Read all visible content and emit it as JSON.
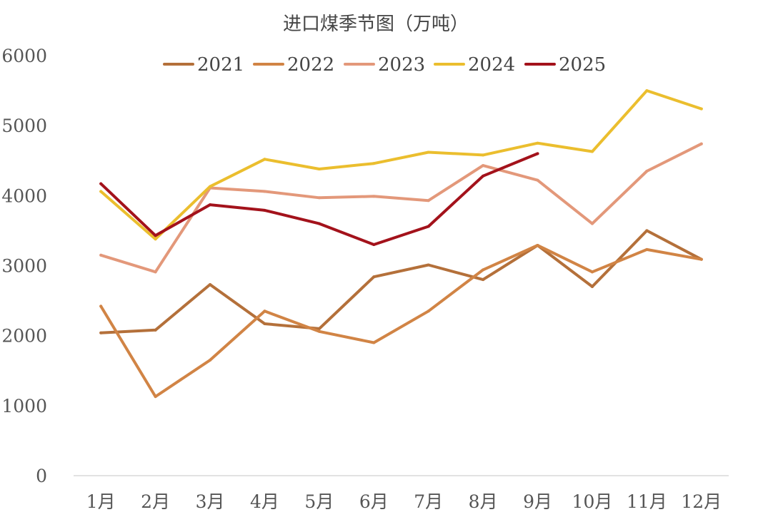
{
  "chart_data": {
    "type": "line",
    "title": "进口煤季节图（万吨）",
    "categories": [
      "1月",
      "2月",
      "3月",
      "4月",
      "5月",
      "6月",
      "7月",
      "8月",
      "9月",
      "10月",
      "11月",
      "12月"
    ],
    "ylim": [
      0,
      6000
    ],
    "yticks": [
      0,
      1000,
      2000,
      3000,
      4000,
      5000,
      6000
    ],
    "grid": false,
    "legend_position": "top",
    "series": [
      {
        "name": "2021",
        "color": "#B4703A",
        "values": [
          2040,
          2080,
          2730,
          2170,
          2100,
          2840,
          3010,
          2800,
          3290,
          2700,
          3500,
          3090
        ]
      },
      {
        "name": "2022",
        "color": "#D18445",
        "values": [
          2420,
          1130,
          1650,
          2350,
          2060,
          1900,
          2350,
          2940,
          3290,
          2910,
          3230,
          3090
        ]
      },
      {
        "name": "2023",
        "color": "#E3987A",
        "values": [
          3150,
          2910,
          4110,
          4060,
          3970,
          3990,
          3930,
          4430,
          4220,
          3600,
          4350,
          4740
        ]
      },
      {
        "name": "2024",
        "color": "#EBBE2E",
        "values": [
          4060,
          3380,
          4130,
          4520,
          4380,
          4460,
          4620,
          4580,
          4750,
          4630,
          5500,
          5240
        ]
      },
      {
        "name": "2025",
        "color": "#A3121B",
        "values": [
          4170,
          3430,
          3870,
          3790,
          3600,
          3300,
          3560,
          4280,
          4600,
          null,
          null,
          null
        ]
      }
    ]
  }
}
